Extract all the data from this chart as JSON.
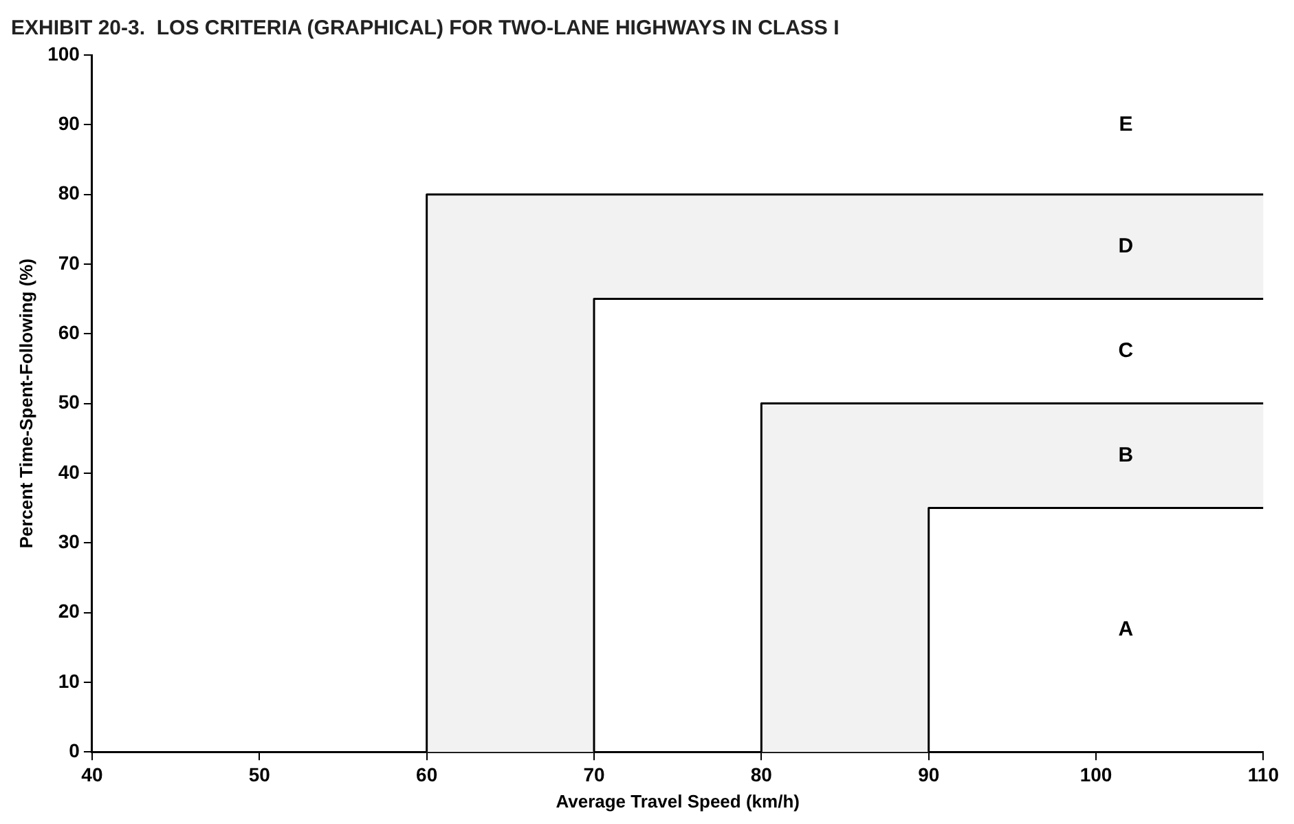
{
  "chart_data": {
    "type": "line",
    "title": "EXHIBIT 20-3.  LOS CRITERIA (GRAPHICAL) FOR TWO-LANE HIGHWAYS IN CLASS I",
    "xlabel": "Average Travel Speed (km/h)",
    "ylabel": "Percent Time-Spent-Following (%)",
    "series": [
      {
        "x": [
          60,
          60,
          110
        ],
        "values": [
          0,
          80,
          80
        ],
        "color": "#000000"
      },
      {
        "x": [
          70,
          70,
          110
        ],
        "values": [
          0,
          65,
          65
        ],
        "color": "#000000"
      },
      {
        "x": [
          80,
          80,
          110
        ],
        "values": [
          0,
          50,
          50
        ],
        "color": "#000000"
      },
      {
        "x": [
          90,
          90,
          110
        ],
        "values": [
          0,
          35,
          35
        ],
        "color": "#000000"
      }
    ],
    "xlim": [
      40,
      110
    ],
    "xticks": [
      40,
      50,
      60,
      70,
      80,
      90,
      100,
      110
    ],
    "ylim": [
      0,
      100
    ],
    "yticks": [
      0,
      10,
      20,
      30,
      40,
      50,
      60,
      70,
      80,
      90,
      100
    ],
    "grid": false,
    "legend": false,
    "annotations": [
      "E",
      "D",
      "C",
      "B",
      "A"
    ]
  }
}
